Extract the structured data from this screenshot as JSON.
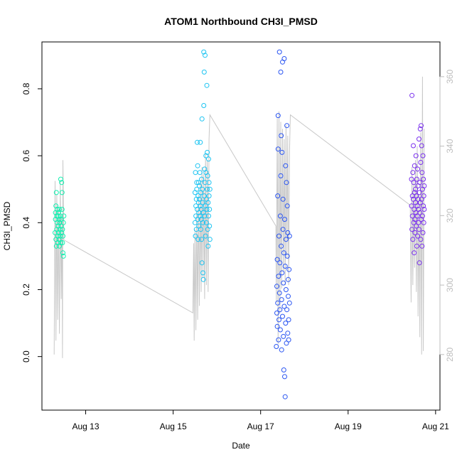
{
  "chart_data": {
    "type": "scatter",
    "title": "ATOM1 Northbound CH3I_PMSD",
    "xlabel": "Date",
    "ylabel": "CH3I_PMSD",
    "x_ticks": [
      "Aug 13",
      "Aug 15",
      "Aug 17",
      "Aug 19",
      "Aug 21"
    ],
    "x_tick_days": [
      13,
      15,
      17,
      19,
      21
    ],
    "xlim_days": [
      12.0,
      21.1
    ],
    "y_ticks": [
      "0.0",
      "0.2",
      "0.4",
      "0.6",
      "0.8"
    ],
    "y_tick_values": [
      0.0,
      0.2,
      0.4,
      0.6,
      0.8
    ],
    "ylim": [
      -0.16,
      0.94
    ],
    "y2_ticks": [
      "280",
      "300",
      "320",
      "340",
      "360"
    ],
    "y2_tick_values": [
      280,
      300,
      320,
      340,
      360
    ],
    "y2lim": [
      264,
      370
    ],
    "line_color": "#c8c8c8",
    "marker_colors": [
      "#00ffaa",
      "#00c8ff",
      "#1a4dff",
      "#8a2be2"
    ],
    "series": [
      {
        "color": "#12f0b0",
        "points": [
          [
            12.3,
            0.37
          ],
          [
            12.31,
            0.41
          ],
          [
            12.31,
            0.43
          ],
          [
            12.32,
            0.45
          ],
          [
            12.32,
            0.35
          ],
          [
            12.33,
            0.33
          ],
          [
            12.33,
            0.49
          ],
          [
            12.34,
            0.42
          ],
          [
            12.34,
            0.38
          ],
          [
            12.35,
            0.4
          ],
          [
            12.35,
            0.44
          ],
          [
            12.36,
            0.36
          ],
          [
            12.36,
            0.34
          ],
          [
            12.37,
            0.42
          ],
          [
            12.37,
            0.39
          ],
          [
            12.38,
            0.43
          ],
          [
            12.38,
            0.37
          ],
          [
            12.39,
            0.41
          ],
          [
            12.39,
            0.35
          ],
          [
            12.4,
            0.44
          ],
          [
            12.4,
            0.33
          ],
          [
            12.41,
            0.4
          ],
          [
            12.41,
            0.38
          ],
          [
            12.42,
            0.36
          ],
          [
            12.42,
            0.42
          ],
          [
            12.43,
            0.53
          ],
          [
            12.43,
            0.34
          ],
          [
            12.44,
            0.39
          ],
          [
            12.44,
            0.41
          ],
          [
            12.45,
            0.52
          ],
          [
            12.45,
            0.37
          ],
          [
            12.46,
            0.49
          ],
          [
            12.46,
            0.44
          ],
          [
            12.47,
            0.38
          ],
          [
            12.47,
            0.34
          ],
          [
            12.48,
            0.36
          ],
          [
            12.48,
            0.31
          ],
          [
            12.49,
            0.4
          ],
          [
            12.49,
            0.3
          ],
          [
            12.5,
            0.42
          ]
        ]
      },
      {
        "color": "#1cc4f2",
        "points": [
          [
            15.5,
            0.4
          ],
          [
            15.5,
            0.49
          ],
          [
            15.51,
            0.55
          ],
          [
            15.51,
            0.36
          ],
          [
            15.52,
            0.45
          ],
          [
            15.52,
            0.42
          ],
          [
            15.53,
            0.47
          ],
          [
            15.53,
            0.38
          ],
          [
            15.54,
            0.52
          ],
          [
            15.54,
            0.5
          ],
          [
            15.55,
            0.64
          ],
          [
            15.55,
            0.44
          ],
          [
            15.56,
            0.57
          ],
          [
            15.56,
            0.41
          ],
          [
            15.57,
            0.48
          ],
          [
            15.57,
            0.35
          ],
          [
            15.58,
            0.52
          ],
          [
            15.58,
            0.46
          ],
          [
            15.59,
            0.43
          ],
          [
            15.59,
            0.39
          ],
          [
            15.6,
            0.51
          ],
          [
            15.6,
            0.47
          ],
          [
            15.61,
            0.55
          ],
          [
            15.61,
            0.42
          ],
          [
            15.62,
            0.45
          ],
          [
            15.62,
            0.64
          ],
          [
            15.63,
            0.38
          ],
          [
            15.63,
            0.49
          ],
          [
            15.64,
            0.44
          ],
          [
            15.64,
            0.41
          ],
          [
            15.65,
            0.35
          ],
          [
            15.65,
            0.53
          ],
          [
            15.66,
            0.71
          ],
          [
            15.66,
            0.28
          ],
          [
            15.67,
            0.46
          ],
          [
            15.67,
            0.5
          ],
          [
            15.68,
            0.25
          ],
          [
            15.68,
            0.4
          ],
          [
            15.69,
            0.43
          ],
          [
            15.69,
            0.23
          ],
          [
            15.7,
            0.91
          ],
          [
            15.7,
            0.75
          ],
          [
            15.71,
            0.85
          ],
          [
            15.71,
            0.48
          ],
          [
            15.72,
            0.56
          ],
          [
            15.72,
            0.42
          ],
          [
            15.73,
            0.9
          ],
          [
            15.73,
            0.52
          ],
          [
            15.74,
            0.36
          ],
          [
            15.74,
            0.45
          ],
          [
            15.75,
            0.55
          ],
          [
            15.75,
            0.6
          ],
          [
            15.76,
            0.47
          ],
          [
            15.76,
            0.4
          ],
          [
            15.77,
            0.81
          ],
          [
            15.77,
            0.44
          ],
          [
            15.78,
            0.61
          ],
          [
            15.78,
            0.5
          ],
          [
            15.79,
            0.38
          ],
          [
            15.79,
            0.54
          ],
          [
            15.8,
            0.46
          ],
          [
            15.8,
            0.33
          ],
          [
            15.81,
            0.59
          ],
          [
            15.81,
            0.42
          ],
          [
            15.82,
            0.48
          ],
          [
            15.82,
            0.52
          ],
          [
            15.83,
            0.39
          ],
          [
            15.83,
            0.44
          ],
          [
            15.84,
            0.5
          ],
          [
            15.84,
            0.35
          ]
        ]
      },
      {
        "color": "#2a55f2",
        "points": [
          [
            17.36,
            0.03
          ],
          [
            17.37,
            0.13
          ],
          [
            17.37,
            0.21
          ],
          [
            17.38,
            0.09
          ],
          [
            17.38,
            0.29
          ],
          [
            17.39,
            0.48
          ],
          [
            17.39,
            0.16
          ],
          [
            17.4,
            0.62
          ],
          [
            17.4,
            0.72
          ],
          [
            17.41,
            0.24
          ],
          [
            17.41,
            0.05
          ],
          [
            17.42,
            0.11
          ],
          [
            17.42,
            0.36
          ],
          [
            17.43,
            0.19
          ],
          [
            17.43,
            0.91
          ],
          [
            17.44,
            0.14
          ],
          [
            17.44,
            0.28
          ],
          [
            17.45,
            0.42
          ],
          [
            17.45,
            0.08
          ],
          [
            17.46,
            0.85
          ],
          [
            17.46,
            0.54
          ],
          [
            17.47,
            0.66
          ],
          [
            17.47,
            0.33
          ],
          [
            17.48,
            0.17
          ],
          [
            17.48,
            0.02
          ],
          [
            17.49,
            0.61
          ],
          [
            17.49,
            0.25
          ],
          [
            17.5,
            0.88
          ],
          [
            17.5,
            0.12
          ],
          [
            17.51,
            0.38
          ],
          [
            17.51,
            0.47
          ],
          [
            17.52,
            0.06
          ],
          [
            17.52,
            0.22
          ],
          [
            17.53,
            -0.04
          ],
          [
            17.53,
            0.31
          ],
          [
            17.54,
            0.89
          ],
          [
            17.54,
            0.15
          ],
          [
            17.55,
            -0.06
          ],
          [
            17.55,
            0.41
          ],
          [
            17.56,
            -0.12
          ],
          [
            17.56,
            0.27
          ],
          [
            17.57,
            0.57
          ],
          [
            17.57,
            0.1
          ],
          [
            17.58,
            0.35
          ],
          [
            17.58,
            0.2
          ],
          [
            17.59,
            0.04
          ],
          [
            17.59,
            0.52
          ],
          [
            17.6,
            0.69
          ],
          [
            17.6,
            0.14
          ],
          [
            17.61,
            0.45
          ],
          [
            17.61,
            0.3
          ],
          [
            17.62,
            0.07
          ],
          [
            17.62,
            0.37
          ],
          [
            17.63,
            0.23
          ],
          [
            17.63,
            0.18
          ],
          [
            17.64,
            0.11
          ],
          [
            17.64,
            0.05
          ],
          [
            17.65,
            0.26
          ],
          [
            17.66,
            0.36
          ],
          [
            17.66,
            0.16
          ]
        ]
      },
      {
        "color": "#7a30ee",
        "points": [
          [
            20.45,
            0.45
          ],
          [
            20.45,
            0.53
          ],
          [
            20.46,
            0.38
          ],
          [
            20.46,
            0.78
          ],
          [
            20.47,
            0.48
          ],
          [
            20.47,
            0.42
          ],
          [
            20.48,
            0.55
          ],
          [
            20.48,
            0.35
          ],
          [
            20.49,
            0.63
          ],
          [
            20.49,
            0.47
          ],
          [
            20.5,
            0.4
          ],
          [
            20.5,
            0.52
          ],
          [
            20.51,
            0.44
          ],
          [
            20.51,
            0.31
          ],
          [
            20.52,
            0.49
          ],
          [
            20.52,
            0.57
          ],
          [
            20.53,
            0.41
          ],
          [
            20.53,
            0.37
          ],
          [
            20.54,
            0.46
          ],
          [
            20.54,
            0.5
          ],
          [
            20.55,
            0.43
          ],
          [
            20.55,
            0.6
          ],
          [
            20.56,
            0.39
          ],
          [
            20.56,
            0.48
          ],
          [
            20.57,
            0.33
          ],
          [
            20.57,
            0.53
          ],
          [
            20.58,
            0.45
          ],
          [
            20.58,
            0.42
          ],
          [
            20.59,
            0.56
          ],
          [
            20.59,
            0.36
          ],
          [
            20.6,
            0.47
          ],
          [
            20.6,
            0.51
          ],
          [
            20.61,
            0.4
          ],
          [
            20.61,
            0.44
          ],
          [
            20.62,
            0.65
          ],
          [
            20.62,
            0.38
          ],
          [
            20.63,
            0.49
          ],
          [
            20.63,
            0.28
          ],
          [
            20.64,
            0.52
          ],
          [
            20.64,
            0.43
          ],
          [
            20.65,
            0.68
          ],
          [
            20.65,
            0.46
          ],
          [
            20.66,
            0.35
          ],
          [
            20.66,
            0.58
          ],
          [
            20.67,
            0.41
          ],
          [
            20.67,
            0.69
          ],
          [
            20.68,
            0.47
          ],
          [
            20.68,
            0.63
          ],
          [
            20.69,
            0.33
          ],
          [
            20.69,
            0.55
          ],
          [
            20.7,
            0.42
          ],
          [
            20.7,
            0.5
          ],
          [
            20.71,
            0.6
          ],
          [
            20.71,
            0.37
          ],
          [
            20.72,
            0.45
          ],
          [
            20.72,
            0.53
          ],
          [
            20.73,
            0.4
          ],
          [
            20.73,
            0.48
          ],
          [
            20.74,
            0.44
          ],
          [
            20.74,
            0.51
          ]
        ]
      }
    ],
    "secondary_line": {
      "axis": "right",
      "color": "#c8c8c8",
      "points": [
        [
          12.28,
          280
        ],
        [
          12.3,
          330
        ],
        [
          12.32,
          284
        ],
        [
          12.34,
          326
        ],
        [
          12.36,
          290
        ],
        [
          12.38,
          322
        ],
        [
          12.4,
          286
        ],
        [
          12.42,
          330
        ],
        [
          12.44,
          296
        ],
        [
          12.46,
          320
        ],
        [
          12.47,
          279
        ],
        [
          12.48,
          336
        ],
        [
          12.5,
          313
        ],
        [
          15.45,
          292
        ],
        [
          15.47,
          312
        ],
        [
          15.48,
          284
        ],
        [
          15.5,
          316
        ],
        [
          15.52,
          287
        ],
        [
          15.54,
          322
        ],
        [
          15.56,
          290
        ],
        [
          15.58,
          326
        ],
        [
          15.6,
          294
        ],
        [
          15.62,
          330
        ],
        [
          15.64,
          298
        ],
        [
          15.66,
          334
        ],
        [
          15.68,
          302
        ],
        [
          15.7,
          332
        ],
        [
          15.72,
          296
        ],
        [
          15.74,
          338
        ],
        [
          15.76,
          300
        ],
        [
          15.78,
          336
        ],
        [
          15.8,
          298
        ],
        [
          15.82,
          342
        ],
        [
          15.84,
          349
        ],
        [
          17.35,
          317
        ],
        [
          17.36,
          295
        ],
        [
          17.38,
          348
        ],
        [
          17.4,
          283
        ],
        [
          17.42,
          350
        ],
        [
          17.44,
          292
        ],
        [
          17.46,
          347
        ],
        [
          17.48,
          299
        ],
        [
          17.5,
          345
        ],
        [
          17.52,
          304
        ],
        [
          17.54,
          342
        ],
        [
          17.56,
          300
        ],
        [
          17.58,
          346
        ],
        [
          17.6,
          308
        ],
        [
          17.62,
          343
        ],
        [
          17.64,
          300
        ],
        [
          17.66,
          338
        ],
        [
          17.68,
          349
        ],
        [
          20.42,
          323
        ],
        [
          20.44,
          295
        ],
        [
          20.46,
          334
        ],
        [
          20.48,
          300
        ],
        [
          20.5,
          330
        ],
        [
          20.52,
          305
        ],
        [
          20.54,
          336
        ],
        [
          20.56,
          298
        ],
        [
          20.58,
          340
        ],
        [
          20.6,
          291
        ],
        [
          20.62,
          326
        ],
        [
          20.64,
          285
        ],
        [
          20.66,
          344
        ],
        [
          20.68,
          280
        ],
        [
          20.7,
          360
        ],
        [
          20.72,
          281
        ],
        [
          20.74,
          345
        ]
      ]
    }
  }
}
